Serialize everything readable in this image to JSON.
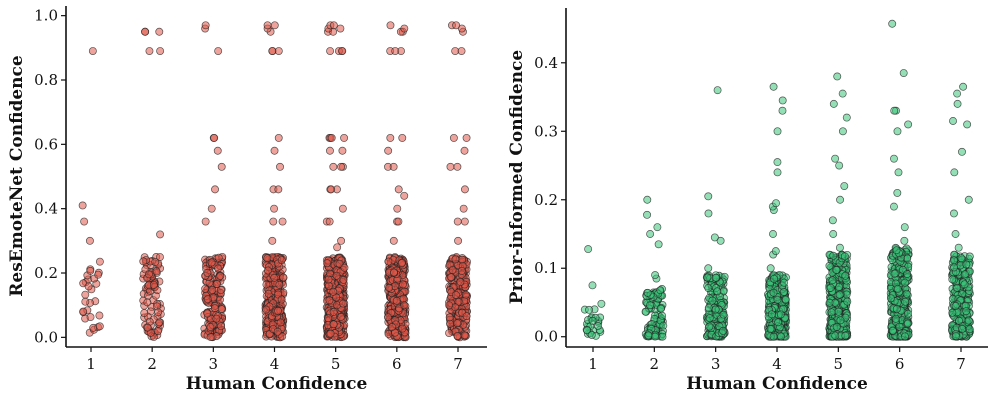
{
  "chart_data": [
    {
      "type": "scatter",
      "subtype": "jittered strip plot",
      "xlabel": "Human Confidence",
      "ylabel": "ResEmoteNet Confidence",
      "categories": [
        "1",
        "2",
        "3",
        "4",
        "5",
        "6",
        "7"
      ],
      "ylim": [
        -0.03,
        1.03
      ],
      "yticks": [
        "0.0",
        "0.2",
        "0.4",
        "0.6",
        "0.8",
        "1.0"
      ],
      "marker_color": "#e05a4a",
      "edge_color": "#222222",
      "series": [
        {
          "name": "1",
          "bulk_range": [
            0.0,
            0.24
          ],
          "bulk_count": 28,
          "outliers": [
            0.3,
            0.36,
            0.41,
            0.89
          ]
        },
        {
          "name": "2",
          "bulk_range": [
            0.0,
            0.25
          ],
          "bulk_count": 90,
          "outliers": [
            0.32,
            0.89,
            0.89,
            0.95,
            0.95,
            0.95
          ]
        },
        {
          "name": "3",
          "bulk_range": [
            0.0,
            0.25
          ],
          "bulk_count": 170,
          "outliers": [
            0.36,
            0.4,
            0.46,
            0.53,
            0.58,
            0.62,
            0.62,
            0.89,
            0.96,
            0.97
          ]
        },
        {
          "name": "4",
          "bulk_range": [
            0.0,
            0.25
          ],
          "bulk_count": 320,
          "outliers": [
            0.3,
            0.36,
            0.36,
            0.4,
            0.46,
            0.46,
            0.53,
            0.58,
            0.62,
            0.89,
            0.89,
            0.89,
            0.95,
            0.96,
            0.97,
            0.97
          ]
        },
        {
          "name": "5",
          "bulk_range": [
            0.0,
            0.25
          ],
          "bulk_count": 430,
          "outliers": [
            0.28,
            0.3,
            0.36,
            0.36,
            0.4,
            0.46,
            0.46,
            0.46,
            0.53,
            0.53,
            0.53,
            0.58,
            0.58,
            0.62,
            0.62,
            0.62,
            0.62,
            0.89,
            0.89,
            0.89,
            0.89,
            0.95,
            0.95,
            0.96,
            0.96,
            0.97,
            0.97
          ]
        },
        {
          "name": "6",
          "bulk_range": [
            0.0,
            0.25
          ],
          "bulk_count": 380,
          "outliers": [
            0.1,
            0.3,
            0.36,
            0.36,
            0.4,
            0.44,
            0.46,
            0.53,
            0.53,
            0.58,
            0.62,
            0.62,
            0.89,
            0.89,
            0.89,
            0.95,
            0.95,
            0.96,
            0.97
          ]
        },
        {
          "name": "7",
          "bulk_range": [
            0.0,
            0.25
          ],
          "bulk_count": 280,
          "outliers": [
            0.3,
            0.36,
            0.36,
            0.4,
            0.46,
            0.53,
            0.53,
            0.58,
            0.62,
            0.62,
            0.89,
            0.89,
            0.95,
            0.96,
            0.97,
            0.97
          ]
        }
      ]
    },
    {
      "type": "scatter",
      "subtype": "jittered strip plot",
      "xlabel": "Human Confidence",
      "ylabel": "Prior-informed Confidence",
      "categories": [
        "1",
        "2",
        "3",
        "4",
        "5",
        "6",
        "7"
      ],
      "ylim": [
        -0.015,
        0.48
      ],
      "yticks": [
        "0.0",
        "0.1",
        "0.2",
        "0.3",
        "0.4"
      ],
      "marker_color": "#3cc47a",
      "edge_color": "#222222",
      "series": [
        {
          "name": "1",
          "bulk_range": [
            0.0,
            0.05
          ],
          "bulk_count": 25,
          "outliers": [
            0.075,
            0.128
          ]
        },
        {
          "name": "2",
          "bulk_range": [
            0.0,
            0.07
          ],
          "bulk_count": 110,
          "outliers": [
            0.085,
            0.09,
            0.135,
            0.15,
            0.16,
            0.178,
            0.2
          ]
        },
        {
          "name": "3",
          "bulk_range": [
            0.0,
            0.09
          ],
          "bulk_count": 200,
          "outliers": [
            0.1,
            0.14,
            0.145,
            0.18,
            0.205,
            0.36
          ]
        },
        {
          "name": "4",
          "bulk_range": [
            0.0,
            0.09
          ],
          "bulk_count": 320,
          "outliers": [
            0.1,
            0.12,
            0.125,
            0.15,
            0.185,
            0.19,
            0.195,
            0.24,
            0.255,
            0.3,
            0.33,
            0.345,
            0.365
          ]
        },
        {
          "name": "5",
          "bulk_range": [
            0.0,
            0.12
          ],
          "bulk_count": 420,
          "outliers": [
            0.13,
            0.15,
            0.17,
            0.2,
            0.22,
            0.25,
            0.26,
            0.3,
            0.32,
            0.34,
            0.355,
            0.38
          ]
        },
        {
          "name": "6",
          "bulk_range": [
            0.0,
            0.13
          ],
          "bulk_count": 400,
          "outliers": [
            0.14,
            0.16,
            0.19,
            0.21,
            0.24,
            0.26,
            0.3,
            0.31,
            0.33,
            0.33,
            0.385,
            0.457
          ]
        },
        {
          "name": "7",
          "bulk_range": [
            0.0,
            0.12
          ],
          "bulk_count": 300,
          "outliers": [
            0.13,
            0.15,
            0.18,
            0.2,
            0.24,
            0.27,
            0.31,
            0.315,
            0.34,
            0.355,
            0.365
          ]
        }
      ]
    }
  ]
}
